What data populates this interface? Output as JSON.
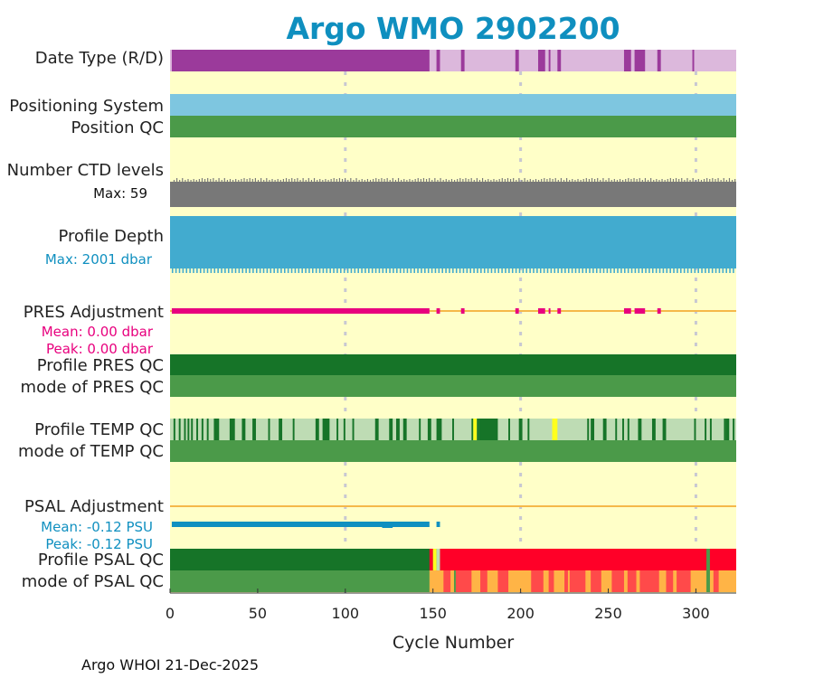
{
  "chart_data": {
    "type": "timeline-strip",
    "title": "Argo WMO 2902200",
    "xlabel": "Cycle Number",
    "xlim": [
      0,
      323
    ],
    "xticks": [
      "0",
      "50",
      "100",
      "150",
      "200",
      "250",
      "300"
    ],
    "gridlines_x": [
      100,
      200,
      300
    ],
    "footer": "Argo WHOI 21-Dec-2025",
    "colors": {
      "background": "#ffffc8",
      "realtime_purple": "#9b3a9b",
      "delayed_purple": "#dcb8dc",
      "positioning": "#7ec6e0",
      "good_green": "#4b9a49",
      "dark_green": "#167428",
      "light_green": "#bedcb4",
      "yellow": "#ffff1e",
      "red": "#ff0028",
      "orange": "#ffb446",
      "pale_red": "#ff4a4a",
      "grey": "#787878",
      "depth_blue": "#42abcf",
      "pres_magenta": "#e8007e",
      "psal_blue": "#1090c0",
      "zero_line": "#f5b84a"
    },
    "rows": [
      {
        "id": "date-type",
        "label": "Date Type (R/D)",
        "realtime_cycles": [
          [
            1,
            148
          ],
          [
            152,
            154
          ],
          [
            166,
            168
          ],
          [
            197,
            199
          ],
          [
            210,
            214
          ],
          [
            216,
            217
          ],
          [
            221,
            223
          ],
          [
            259,
            263
          ],
          [
            265,
            271
          ],
          [
            278,
            280
          ],
          [
            298,
            299
          ]
        ]
      },
      {
        "id": "positioning-system",
        "label": "Positioning System"
      },
      {
        "id": "position-qc",
        "label": "Position QC"
      },
      {
        "id": "ctd-levels",
        "label": "Number CTD levels",
        "max_label": "Max: 59"
      },
      {
        "id": "profile-depth",
        "label": "Profile Depth",
        "max_label": "Max: 2001 dbar"
      },
      {
        "id": "pres-adjustment",
        "label": "PRES Adjustment",
        "mean_label": "Mean: 0.00 dbar",
        "peak_label": "Peak: 0.00 dbar",
        "adjusted_cycles": [
          [
            1,
            148
          ],
          [
            152,
            154
          ],
          [
            166,
            168
          ],
          [
            197,
            199
          ],
          [
            210,
            214
          ],
          [
            216,
            217
          ],
          [
            221,
            223
          ],
          [
            259,
            263
          ],
          [
            265,
            271
          ],
          [
            278,
            280
          ]
        ]
      },
      {
        "id": "profile-pres-qc",
        "label": "Profile PRES QC"
      },
      {
        "id": "mode-pres-qc",
        "label": "mode of PRES QC"
      },
      {
        "id": "profile-temp-qc",
        "label": "Profile TEMP QC",
        "flag_a_cycles": [
          [
            2,
            3
          ],
          [
            5,
            6
          ],
          [
            8,
            9
          ],
          [
            10,
            11
          ],
          [
            12,
            13
          ],
          [
            15,
            16
          ],
          [
            18,
            19
          ],
          [
            21,
            22
          ],
          [
            25,
            28
          ],
          [
            34,
            37
          ],
          [
            41,
            43
          ],
          [
            47,
            49
          ],
          [
            56,
            57
          ],
          [
            62,
            64
          ],
          [
            70,
            71
          ],
          [
            83,
            85
          ],
          [
            87,
            91
          ],
          [
            95,
            96
          ],
          [
            99,
            100
          ],
          [
            104,
            105
          ],
          [
            117,
            119
          ],
          [
            125,
            127
          ],
          [
            129,
            131
          ],
          [
            133,
            135
          ],
          [
            142,
            143
          ],
          [
            147,
            149
          ],
          [
            152,
            155
          ],
          [
            161,
            162
          ],
          [
            172,
            173
          ],
          [
            175,
            176
          ],
          [
            176,
            187
          ],
          [
            193,
            194
          ],
          [
            199,
            201
          ],
          [
            204,
            205
          ],
          [
            238,
            239
          ],
          [
            240,
            242
          ],
          [
            247,
            249
          ],
          [
            254,
            255
          ],
          [
            258,
            259
          ],
          [
            261,
            262
          ],
          [
            267,
            269
          ],
          [
            275,
            277
          ],
          [
            281,
            283
          ],
          [
            299,
            300
          ],
          [
            305,
            306
          ],
          [
            308,
            309
          ],
          [
            316,
            317
          ],
          [
            317,
            319
          ],
          [
            321,
            322
          ]
        ],
        "flag_b_cycles": [
          [
            173,
            175
          ],
          [
            218,
            221
          ]
        ]
      },
      {
        "id": "mode-temp-qc",
        "label": "mode of TEMP QC"
      },
      {
        "id": "psal-adjustment",
        "label": "PSAL Adjustment",
        "mean_label": "Mean: -0.12 PSU",
        "peak_label": "Peak: -0.12 PSU",
        "adjusted_cycles": [
          [
            1,
            148
          ],
          [
            152,
            154
          ]
        ],
        "extra_segment_cycles": [
          [
            121,
            127
          ]
        ]
      },
      {
        "id": "profile-psal-qc",
        "label": "Profile PSAL QC",
        "yellow_cycles": [
          [
            150,
            152
          ]
        ],
        "light_cycles": [
          [
            152,
            154
          ]
        ],
        "red_start": [
          [
            148,
            150
          ],
          [
            154,
            323
          ]
        ],
        "green_cycles": [
          [
            306,
            308
          ]
        ]
      },
      {
        "id": "mode-psal-qc",
        "label": "mode of PSAL QC",
        "pale_red_cycles": [
          [
            156,
            160
          ],
          [
            163,
            172
          ],
          [
            177,
            181
          ],
          [
            187,
            193
          ],
          [
            206,
            213
          ],
          [
            216,
            219
          ],
          [
            225,
            227
          ],
          [
            228,
            237
          ],
          [
            240,
            246
          ],
          [
            252,
            259
          ],
          [
            261,
            266
          ],
          [
            268,
            279
          ],
          [
            283,
            287
          ],
          [
            289,
            297
          ],
          [
            310,
            313
          ]
        ],
        "green_cycles": [
          [
            162,
            163
          ],
          [
            306,
            308
          ]
        ]
      }
    ]
  }
}
